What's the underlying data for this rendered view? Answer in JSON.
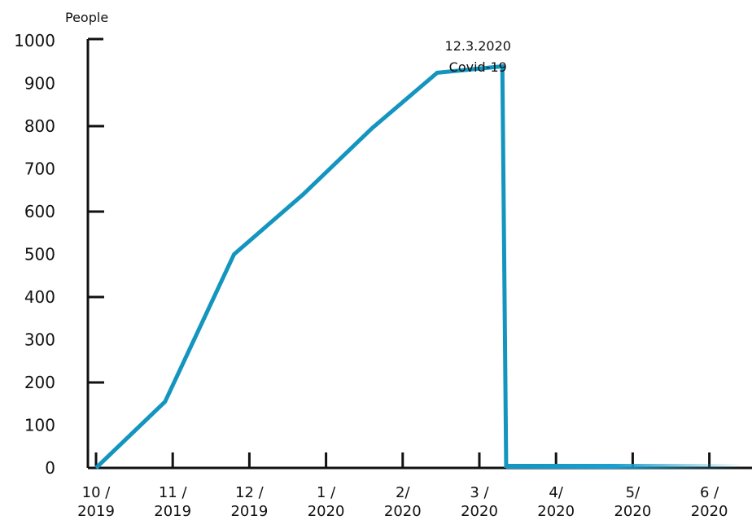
{
  "chart_data": {
    "type": "line",
    "ylabel": "People",
    "ylim": [
      0,
      1000
    ],
    "yticks": [
      0,
      100,
      200,
      300,
      400,
      500,
      600,
      700,
      800,
      900,
      1000
    ],
    "x_ticks": [
      {
        "line1": "10 /",
        "line2": "2019"
      },
      {
        "line1": "11 /",
        "line2": "2019"
      },
      {
        "line1": "12 /",
        "line2": "2019"
      },
      {
        "line1": "1 /",
        "line2": "2020"
      },
      {
        "line1": "2/",
        "line2": "2020"
      },
      {
        "line1": "3 /",
        "line2": "2020"
      },
      {
        "line1": "4/",
        "line2": "2020"
      },
      {
        "line1": "5/",
        "line2": "2020"
      },
      {
        "line1": "6 /",
        "line2": "2020"
      }
    ],
    "series": [
      {
        "x": [
          0,
          0.9,
          1.8,
          2.7,
          3.6,
          4.45,
          5.3,
          5.35,
          7.0,
          8.4
        ],
        "values": [
          0,
          155,
          500,
          640,
          795,
          925,
          940,
          0,
          0,
          0
        ]
      }
    ],
    "annotation": {
      "line1": "12.3.2020",
      "line2": "Covid-19",
      "x": 5.3,
      "y": 940
    },
    "grid": false,
    "line_color": "#1495bf"
  }
}
